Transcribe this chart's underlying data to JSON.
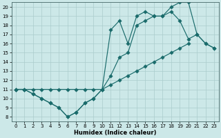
{
  "title": "",
  "xlabel": "Humidex (Indice chaleur)",
  "background_color": "#cce8e8",
  "line_color": "#1a6b6b",
  "grid_color": "#aacccc",
  "xlim": [
    -0.5,
    23.5
  ],
  "ylim": [
    7.5,
    20.5
  ],
  "xticks": [
    0,
    1,
    2,
    3,
    4,
    5,
    6,
    7,
    8,
    9,
    10,
    11,
    12,
    13,
    14,
    15,
    16,
    17,
    18,
    19,
    20,
    21,
    22,
    23
  ],
  "yticks": [
    8,
    9,
    10,
    11,
    12,
    13,
    14,
    15,
    16,
    17,
    18,
    19,
    20
  ],
  "line1_x": [
    0,
    1,
    2,
    3,
    4,
    5,
    6,
    7,
    8,
    9,
    10,
    11,
    12,
    13,
    14,
    15,
    16,
    17,
    18,
    19,
    20
  ],
  "line1_y": [
    11,
    11,
    11,
    11,
    11,
    11,
    11,
    11,
    11,
    11,
    11,
    11.5,
    12,
    12.5,
    13,
    13.5,
    14,
    14.5,
    15,
    15.5,
    16
  ],
  "line2_x": [
    0,
    1,
    2,
    3,
    4,
    5,
    6,
    7,
    8,
    9,
    10,
    11,
    12,
    13,
    14,
    15,
    16,
    17,
    18,
    19,
    20,
    21,
    22,
    23
  ],
  "line2_y": [
    11,
    11,
    10.5,
    10,
    9.5,
    9,
    8.0,
    8.5,
    9.5,
    10,
    11,
    17.5,
    18.5,
    16,
    19,
    19.5,
    19,
    19,
    20,
    20.5,
    20.5,
    17,
    16,
    15.5
  ],
  "line3_x": [
    0,
    1,
    2,
    3,
    4,
    5,
    6,
    7,
    8,
    9,
    10,
    11,
    12,
    13,
    14,
    15,
    16,
    17,
    18,
    19,
    20,
    21,
    22,
    23
  ],
  "line3_y": [
    11,
    11,
    10.5,
    10,
    9.5,
    9,
    8.0,
    8.5,
    9.5,
    10,
    11,
    12.5,
    14.5,
    15,
    18,
    18.5,
    19,
    19,
    19.5,
    18.5,
    16.5,
    17,
    16,
    15.5
  ]
}
